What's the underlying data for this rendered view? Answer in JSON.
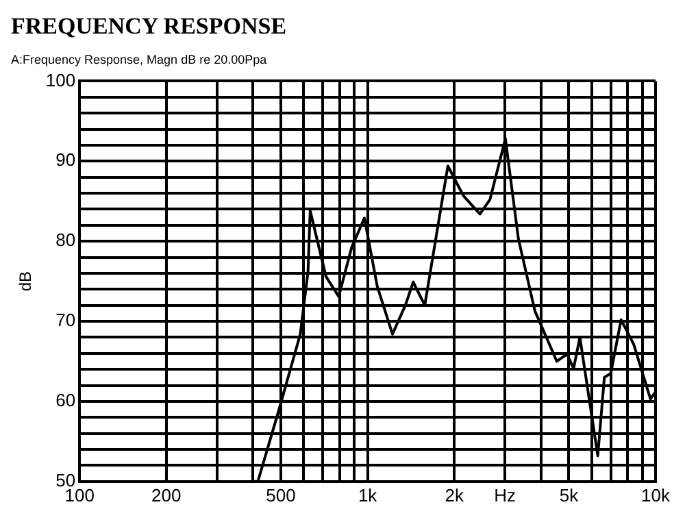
{
  "chart_data": {
    "type": "line",
    "title": "FREQUENCY RESPONSE",
    "subtitle": "A:Frequency Response, Magn dB re 20.00Ppa",
    "ylabel": "dB",
    "x": [
      395,
      416,
      490,
      584,
      621,
      632,
      717,
      794,
      880,
      975,
      1080,
      1220,
      1353,
      1440,
      1580,
      1900,
      2150,
      2455,
      2660,
      3010,
      3340,
      3810,
      4540,
      4930,
      5190,
      5460,
      6300,
      6640,
      6990,
      7590,
      8400,
      9600,
      10000
    ],
    "series": [
      {
        "color": "#000000",
        "values": [
          50,
          50,
          58.7,
          68.4,
          76.2,
          83.8,
          75.6,
          73.1,
          79.2,
          82.9,
          74.4,
          68.4,
          72,
          74.9,
          72,
          89.4,
          85.7,
          83.4,
          85.2,
          92.8,
          80.3,
          71.3,
          65,
          65.9,
          64.1,
          68,
          53.2,
          63,
          63.5,
          70.2,
          67.1,
          60.3,
          61.2
        ]
      }
    ],
    "log": "x",
    "xlim": [
      100,
      10000
    ],
    "ylim": [
      50,
      100
    ],
    "xticks": [
      100,
      200,
      {
        "value": 300,
        "label": null
      },
      {
        "value": 400,
        "label": null
      },
      500,
      {
        "value": 600,
        "label": null
      },
      {
        "value": 700,
        "label": null
      },
      {
        "value": 800,
        "label": null
      },
      {
        "value": 900,
        "label": null
      },
      {
        "value": 1000,
        "label": "1k"
      },
      {
        "value": 2000,
        "label": "2k"
      },
      {
        "value": 3000,
        "label": "Hz"
      },
      {
        "value": 4000,
        "label": null
      },
      {
        "value": 5000,
        "label": "5k"
      },
      {
        "value": 6000,
        "label": null
      },
      {
        "value": 7000,
        "label": null
      },
      {
        "value": 8000,
        "label": null
      },
      {
        "value": 9000,
        "label": null
      },
      {
        "value": 10000,
        "label": "10k"
      }
    ],
    "yticks": [
      50,
      {
        "value": 52,
        "label": null
      },
      {
        "value": 54,
        "label": null
      },
      {
        "value": 56,
        "label": null
      },
      {
        "value": 58,
        "label": null
      },
      60,
      {
        "value": 62,
        "label": null
      },
      {
        "value": 64,
        "label": null
      },
      {
        "value": 66,
        "label": null
      },
      {
        "value": 68,
        "label": null
      },
      70,
      {
        "value": 72,
        "label": null
      },
      {
        "value": 74,
        "label": null
      },
      {
        "value": 76,
        "label": null
      },
      {
        "value": 78,
        "label": null
      },
      80,
      {
        "value": 82,
        "label": null
      },
      {
        "value": 84,
        "label": null
      },
      {
        "value": 86,
        "label": null
      },
      {
        "value": 88,
        "label": null
      },
      90,
      {
        "value": 92,
        "label": null
      },
      {
        "value": 94,
        "label": null
      },
      {
        "value": 96,
        "label": null
      },
      {
        "value": 98,
        "label": null
      },
      100
    ],
    "grid": true,
    "legend": false,
    "marker": "none",
    "line_style": "solid"
  }
}
